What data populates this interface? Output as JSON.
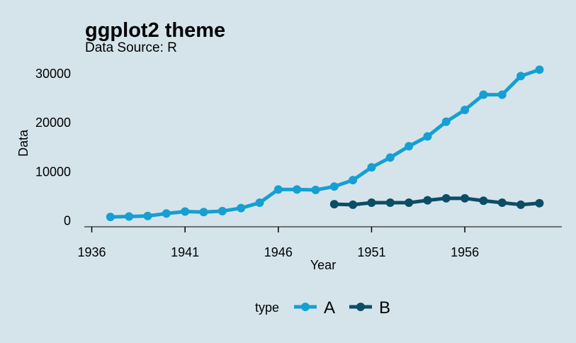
{
  "chart_data": {
    "type": "line",
    "title": "ggplot2 theme",
    "subtitle": "Data Source: R",
    "xlabel": "Year",
    "ylabel": "Data",
    "xlim": [
      1935.6,
      1961.2
    ],
    "ylim": [
      -1200,
      32000
    ],
    "x_ticks": [
      1936,
      1941,
      1946,
      1951,
      1956
    ],
    "y_ticks": [
      0,
      10000,
      20000,
      30000
    ],
    "grid": false,
    "legend_position": "bottom",
    "legend_title": "type",
    "series": [
      {
        "name": "A",
        "color": "#159fd3",
        "x": [
          1937,
          1938,
          1939,
          1940,
          1941,
          1942,
          1943,
          1944,
          1945,
          1946,
          1947,
          1948,
          1949,
          1950,
          1951,
          1952,
          1953,
          1954,
          1955,
          1956,
          1957,
          1958,
          1959,
          1960
        ],
        "values": [
          800,
          900,
          1000,
          1500,
          1900,
          1800,
          2000,
          2600,
          3700,
          6400,
          6400,
          6300,
          7000,
          8300,
          10900,
          12900,
          15200,
          17200,
          20200,
          22600,
          25700,
          25700,
          29500,
          30800
        ]
      },
      {
        "name": "B",
        "color": "#0c4d66",
        "x": [
          1949,
          1950,
          1951,
          1952,
          1953,
          1954,
          1955,
          1956,
          1957,
          1958,
          1959,
          1960
        ],
        "values": [
          3400,
          3300,
          3700,
          3700,
          3700,
          4200,
          4600,
          4600,
          4100,
          3700,
          3300,
          3600
        ]
      }
    ]
  }
}
